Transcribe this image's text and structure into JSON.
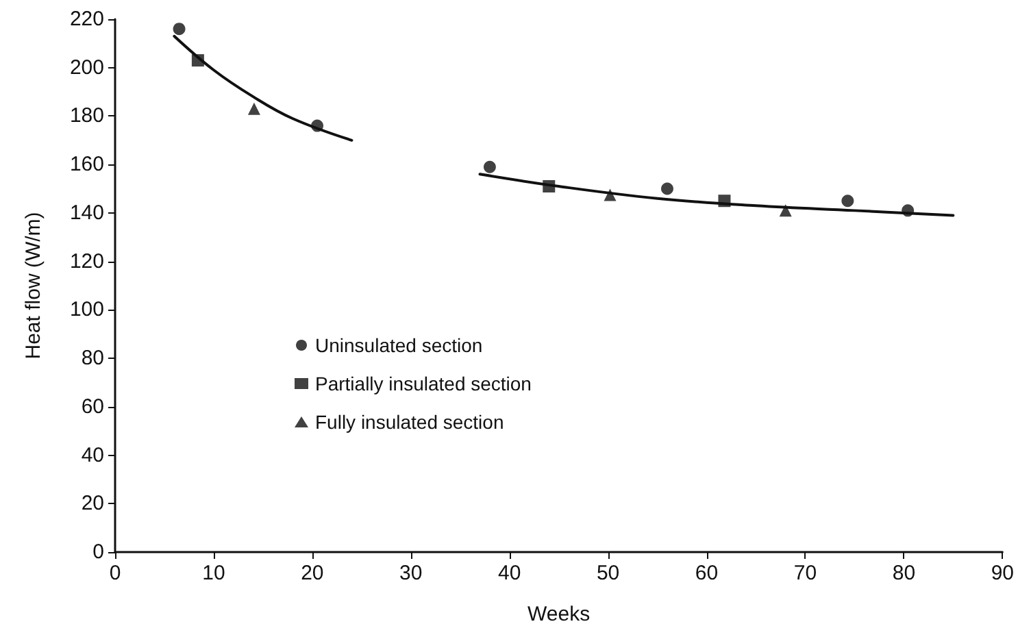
{
  "chart_data": {
    "type": "scatter",
    "xlabel": "Weeks",
    "ylabel": "Heat flow (W/m)",
    "xlim": [
      0,
      90
    ],
    "xticks": [
      0,
      10,
      20,
      30,
      40,
      50,
      60,
      70,
      80,
      90
    ],
    "ylim": [
      0,
      220
    ],
    "yticks": [
      0,
      20,
      40,
      60,
      80,
      100,
      120,
      140,
      160,
      180,
      200,
      220
    ],
    "grid": false,
    "legend": "left",
    "series": [
      {
        "name": "Uninsulated section",
        "color": "#111111",
        "marker": "circle",
        "x": [
          6.5,
          20.5,
          38,
          56,
          74.3,
          80.4
        ],
        "values": [
          216,
          176,
          159,
          150,
          145,
          141
        ]
      },
      {
        "name": "Partially insulated section",
        "color": "#111111",
        "marker": "square",
        "x": [
          8.4,
          44,
          61.8
        ],
        "values": [
          203,
          151,
          145
        ]
      },
      {
        "name": "Fully insulated section",
        "color": "#111111",
        "marker": "triangle",
        "x": [
          14.1,
          50.2,
          68
        ],
        "values": [
          183,
          147.5,
          141
        ]
      },
      {
        "type": "line",
        "color": "#111111",
        "marker": "none",
        "line_style": "solid",
        "x": [
          6,
          10,
          14,
          18,
          24
        ],
        "values": [
          213,
          199,
          188,
          179,
          170
        ]
      },
      {
        "type": "line",
        "color": "#111111",
        "marker": "none",
        "line_style": "solid",
        "x": [
          37,
          45,
          55,
          65,
          75,
          85
        ],
        "values": [
          156,
          151,
          146,
          143,
          141,
          139
        ]
      }
    ]
  }
}
